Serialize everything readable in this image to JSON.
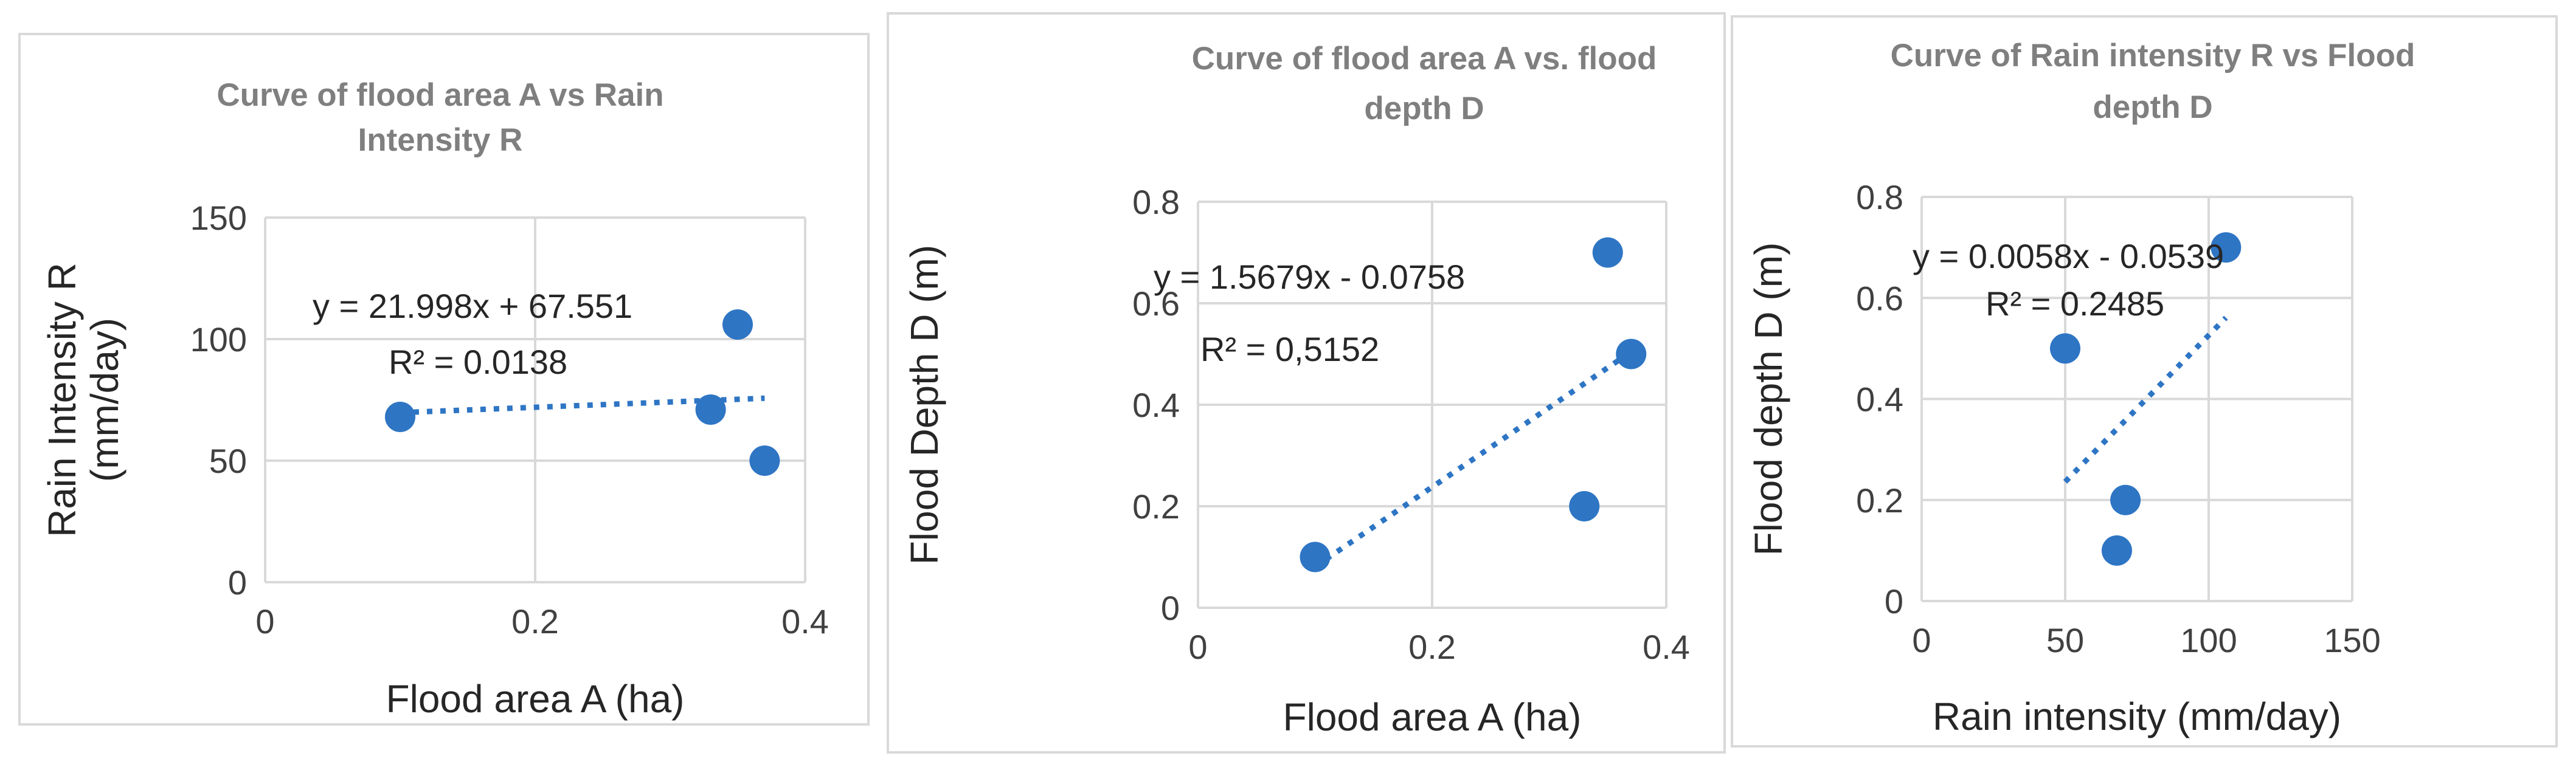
{
  "colors": {
    "series": "#2e75c4",
    "trend": "#2e75c4"
  },
  "chart_data": [
    {
      "type": "scatter",
      "title": [
        "Curve of flood area A vs Rain",
        "Intensity R"
      ],
      "xlabel": "Flood area A (ha)",
      "ylabel": [
        "Rain Intensity R",
        "(mm/day)"
      ],
      "xlim": [
        0,
        0.4
      ],
      "ylim": [
        0,
        150
      ],
      "x_ticks": [
        0,
        0.2,
        0.4
      ],
      "y_ticks": [
        0,
        50,
        100,
        150
      ],
      "x_tick_labels": [
        "0",
        "0.2",
        "0.4"
      ],
      "y_tick_labels": [
        "0",
        "50",
        "100",
        "150"
      ],
      "points": [
        {
          "x": 0.1,
          "y": 68
        },
        {
          "x": 0.33,
          "y": 71
        },
        {
          "x": 0.35,
          "y": 106
        },
        {
          "x": 0.37,
          "y": 50
        }
      ],
      "trendline": {
        "slope": 21.998,
        "intercept": 67.551,
        "x_range": [
          0.1,
          0.37
        ]
      },
      "equation": "y = 21.998x + 67.551",
      "r_squared": "R² = 0.0138"
    },
    {
      "type": "scatter",
      "title": [
        "Curve of flood area A vs. flood",
        "depth D"
      ],
      "xlabel": "Flood area A (ha)",
      "ylabel": [
        "Flood Depth D  (m)"
      ],
      "xlim": [
        0,
        0.4
      ],
      "ylim": [
        0,
        0.8
      ],
      "x_ticks": [
        0,
        0.2,
        0.4
      ],
      "y_ticks": [
        0,
        0.2,
        0.4,
        0.6,
        0.8
      ],
      "x_tick_labels": [
        "0",
        "0.2",
        "0.4"
      ],
      "y_tick_labels": [
        "0",
        "0.2",
        "0.4",
        "0.6",
        "0.8"
      ],
      "points": [
        {
          "x": 0.1,
          "y": 0.1
        },
        {
          "x": 0.33,
          "y": 0.2
        },
        {
          "x": 0.35,
          "y": 0.7
        },
        {
          "x": 0.37,
          "y": 0.5
        }
      ],
      "trendline": {
        "slope": 1.5679,
        "intercept": -0.0758,
        "x_range": [
          0.1,
          0.37
        ]
      },
      "equation": "y = 1.5679x - 0.0758",
      "r_squared": "R² = 0,5152"
    },
    {
      "type": "scatter",
      "title": [
        "Curve of Rain intensity R vs Flood",
        "depth D"
      ],
      "xlabel": "Rain intensity (mm/day)",
      "ylabel": [
        "Flood depth D (m)"
      ],
      "xlim": [
        0,
        150
      ],
      "ylim": [
        0,
        0.8
      ],
      "x_ticks": [
        0,
        50,
        100,
        150
      ],
      "y_ticks": [
        0,
        0.2,
        0.4,
        0.6,
        0.8
      ],
      "x_tick_labels": [
        "0",
        "50",
        "100",
        "150"
      ],
      "y_tick_labels": [
        "0",
        "0.2",
        "0.4",
        "0.6",
        "0.8"
      ],
      "points": [
        {
          "x": 50,
          "y": 0.5
        },
        {
          "x": 68,
          "y": 0.1
        },
        {
          "x": 71,
          "y": 0.2
        },
        {
          "x": 106,
          "y": 0.7
        }
      ],
      "trendline": {
        "slope": 0.0058,
        "intercept": -0.0539,
        "x_range": [
          50,
          106
        ]
      },
      "equation": "y = 0.0058x - 0.0539",
      "r_squared": "R² = 0.2485"
    }
  ]
}
